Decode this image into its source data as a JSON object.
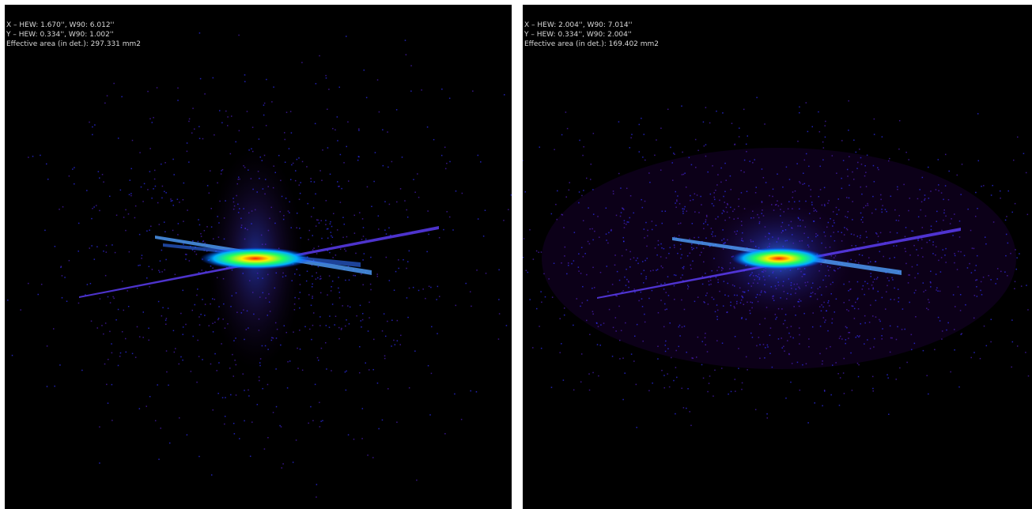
{
  "panels": [
    {
      "lines": [
        "X – HEW: 1.670'', W90: 6.012''",
        "Y – HEW: 0.334'', W90: 1.002''",
        "Effective area (in det.): 297.331 mm2"
      ]
    },
    {
      "lines": [
        "X – HEW: 2.004'', W90: 7.014''",
        "Y – HEW: 0.334'', W90: 2.004''",
        "Effective area (in det.): 169.402 mm2"
      ]
    }
  ]
}
